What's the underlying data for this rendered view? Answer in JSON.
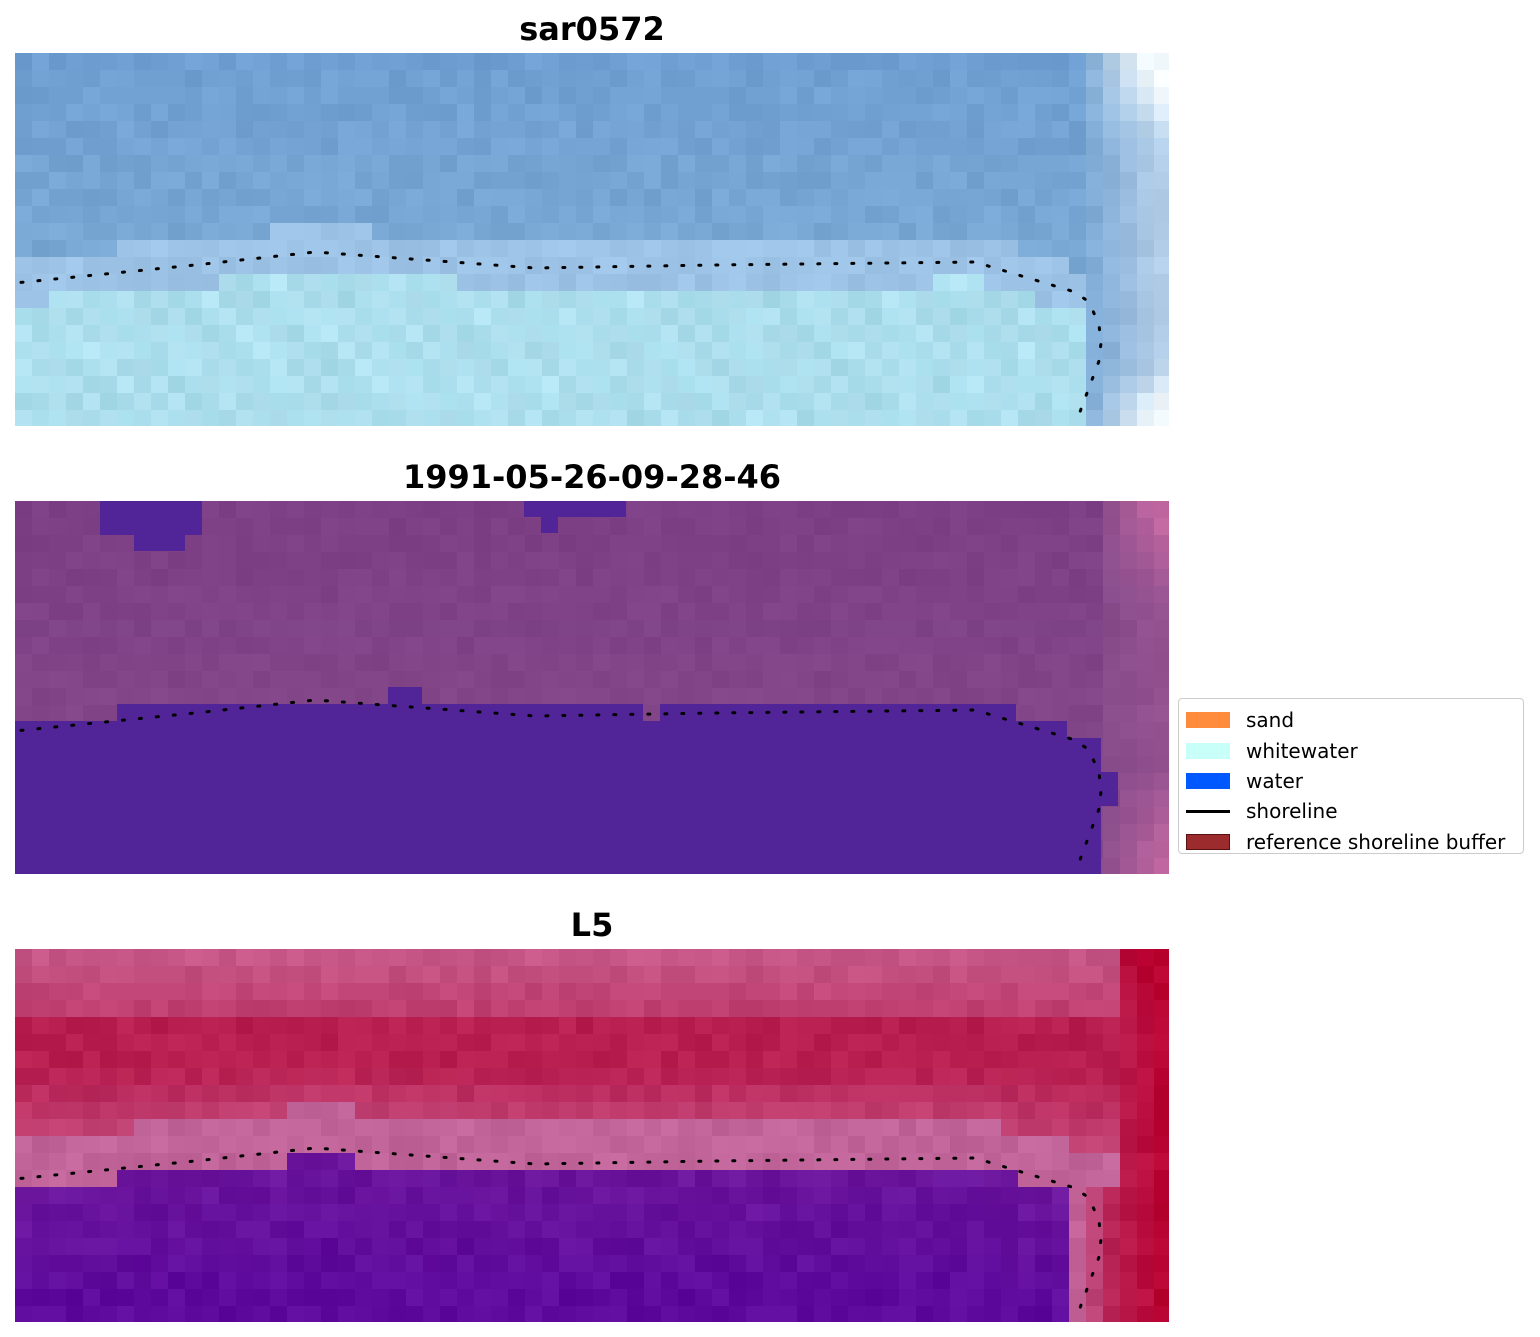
{
  "panels": [
    {
      "title": "sar0572",
      "palette": {
        "land_top": "#6f9fd2",
        "land_mid": "#7aa8d4",
        "shore_band": "#9dc4e6",
        "sea": "#a6dbea",
        "sea_alt": "#b6e4f2",
        "corner_light": "#f4fbff"
      }
    },
    {
      "title": "1991-05-26-09-28-46",
      "palette": {
        "land_top": "#7d3f85",
        "land_mid": "#844a8a",
        "mask": "#512598",
        "corner_light": "#c067a0"
      }
    },
    {
      "title": "L5",
      "palette": {
        "land_top": "#c65a8a",
        "land_mid": "#b81e50",
        "shore_band": "#c0649a",
        "sea": "#5e0a9c",
        "sea_alt": "#6d179d",
        "corner_dark": "#b8002e"
      }
    }
  ],
  "legend": {
    "items": [
      {
        "label": "sand",
        "color": "#ff8b3d",
        "kind": "patch"
      },
      {
        "label": "whitewater",
        "color": "#c8fff8",
        "kind": "patch"
      },
      {
        "label": "water",
        "color": "#0059ff",
        "kind": "patch"
      },
      {
        "label": "shoreline",
        "color": "#000000",
        "kind": "line"
      },
      {
        "label": "reference shoreline buffer",
        "color": "#9c2b2e",
        "kind": "patch"
      }
    ]
  }
}
